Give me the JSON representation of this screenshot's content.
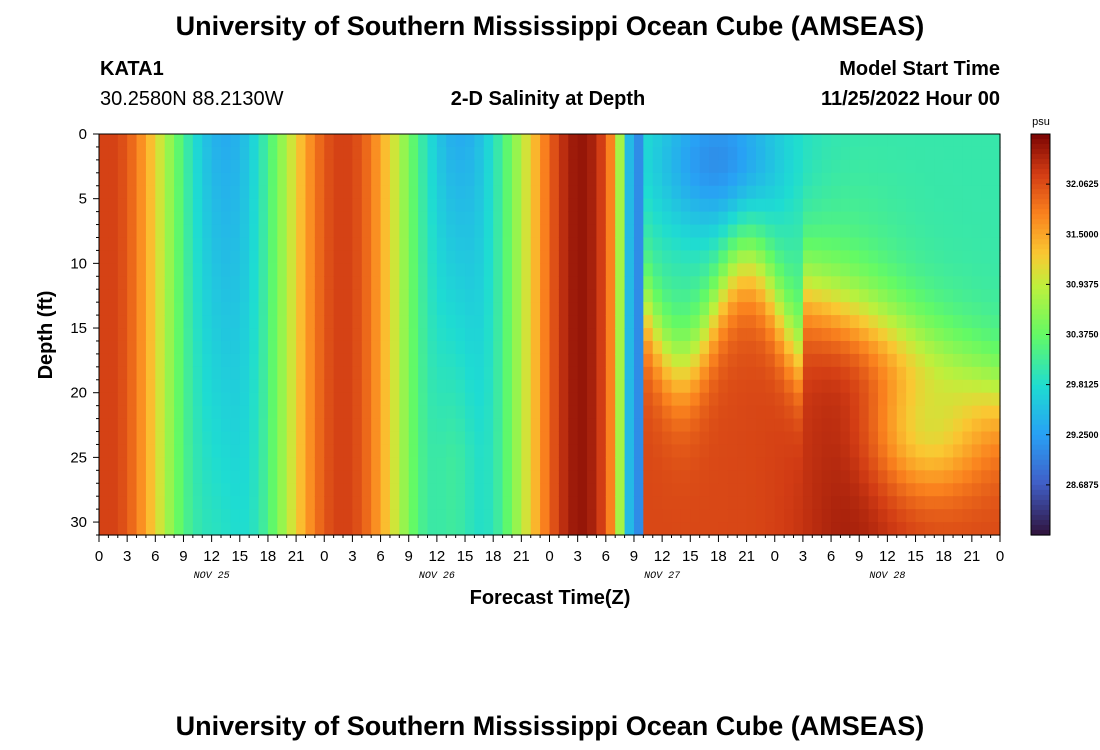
{
  "page_title": "University of Southern Mississippi Ocean Cube (AMSEAS)",
  "footer_title": "University of Southern Mississippi Ocean Cube (AMSEAS)",
  "station": {
    "id": "KATA1",
    "coords": "30.2580N  88.2130W"
  },
  "model": {
    "label": "Model Start Time",
    "start": "11/25/2022 Hour 00"
  },
  "chart_data": {
    "type": "heatmap",
    "title": "2-D Salinity at Depth",
    "xlabel": "Forecast Time(Z)",
    "ylabel": "Depth (ft)",
    "units": "psu",
    "x_range_hours": [
      0,
      96
    ],
    "y_range_ft": [
      0,
      31
    ],
    "x_tick_labels": [
      "0",
      "3",
      "6",
      "9",
      "12",
      "15",
      "18",
      "21",
      "0",
      "3",
      "6",
      "9",
      "12",
      "15",
      "18",
      "21",
      "0",
      "3",
      "6",
      "9",
      "12",
      "15",
      "18",
      "21",
      "0",
      "3",
      "6",
      "9",
      "12",
      "15",
      "18",
      "21",
      "0"
    ],
    "day_labels": [
      "NOV 25",
      "NOV 26",
      "NOV 27",
      "NOV 28"
    ],
    "y_ticks": [
      0,
      5,
      10,
      15,
      20,
      25,
      30
    ],
    "colorbar_min": 28.125,
    "colorbar_max": 32.625,
    "colorbar_ticks": [
      "32.0625",
      "31.5000",
      "30.9375",
      "30.3750",
      "29.8125",
      "29.2500",
      "28.6875"
    ],
    "colorbar_tick_values": [
      32.0625,
      31.5,
      30.9375,
      30.375,
      29.8125,
      29.25,
      28.6875
    ],
    "grid": false,
    "description": "Salinity (psu) vs forecast hour (x) and depth in ft (y); high salinity (red) near hours 3-6, 27-30, 51-54 and 72-84 at depth; low salinity (blue) near surface around hours 13, 38 and after hour 60 in upper 15 ft."
  }
}
